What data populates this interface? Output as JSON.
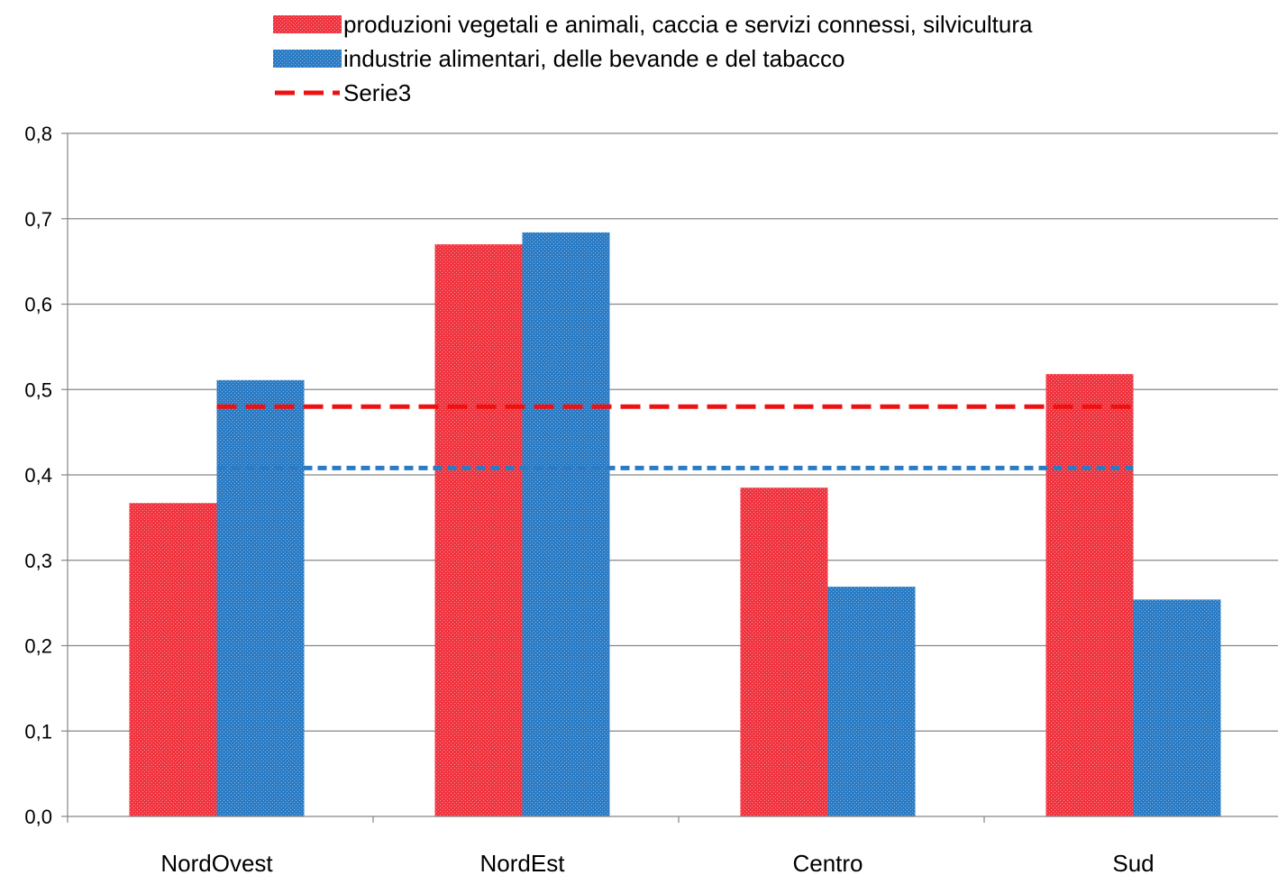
{
  "chart_data": {
    "type": "bar",
    "title": "",
    "xlabel": "",
    "ylabel": "",
    "categories": [
      "NordOvest",
      "NordEst",
      "Centro",
      "Sud"
    ],
    "series": [
      {
        "name": "produzioni vegetali e animali, caccia e servizi connessi, silvicultura",
        "type": "bar",
        "color": "#f0343f",
        "values": [
          0.367,
          0.67,
          0.385,
          0.518
        ]
      },
      {
        "name": "industrie alimentari, delle bevande e del tabacco",
        "type": "bar",
        "color": "#2a7bc4",
        "values": [
          0.511,
          0.684,
          0.269,
          0.254
        ]
      },
      {
        "name": "Serie3",
        "type": "line",
        "style": "dashed",
        "color": "#ee1111",
        "values": [
          0.48,
          0.48,
          0.48,
          0.48
        ]
      },
      {
        "type": "line",
        "style": "dotted",
        "color": "#2a7bc4",
        "values": [
          0.408,
          0.408,
          0.408,
          0.408
        ]
      }
    ],
    "ylim": [
      0,
      0.8
    ],
    "yticks": [
      "0,0",
      "0,1",
      "0,2",
      "0,3",
      "0,4",
      "0,5",
      "0,6",
      "0,7",
      "0,8"
    ],
    "ytick_values": [
      0,
      0.1,
      0.2,
      0.3,
      0.4,
      0.5,
      0.6,
      0.7,
      0.8
    ],
    "grid": true,
    "legend_position": "top"
  }
}
